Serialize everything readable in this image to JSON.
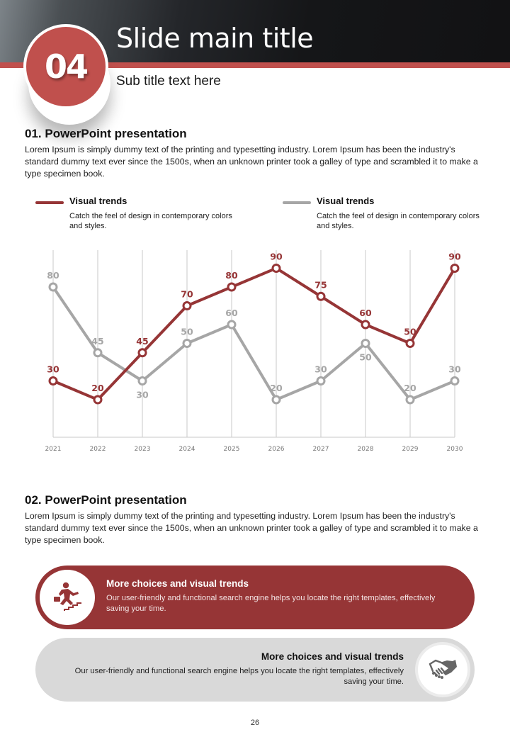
{
  "header": {
    "badge_number": "04",
    "title": "Slide main title",
    "subtitle": "Sub title text here"
  },
  "section1": {
    "title": "01. PowerPoint presentation",
    "body": "Lorem Ipsum is simply dummy text of the printing and typesetting industry. Lorem Ipsum has been the industry's standard dummy text ever since the 1500s, when an unknown printer took a galley of type and scrambled it to make a type specimen book."
  },
  "legend": [
    {
      "title": "Visual trends",
      "desc": "Catch the feel of design in contemporary colors and styles.",
      "color": "#963536"
    },
    {
      "title": "Visual trends",
      "desc": "Catch the feel of design in contemporary colors and styles.",
      "color": "#a6a6a6"
    }
  ],
  "chart_data": {
    "type": "line",
    "title": "",
    "xlabel": "",
    "ylabel": "",
    "categories": [
      "2021",
      "2022",
      "2023",
      "2024",
      "2025",
      "2026",
      "2027",
      "2028",
      "2029",
      "2030"
    ],
    "ylim": [
      0,
      100
    ],
    "grid": "vertical",
    "legend_position": "top",
    "series": [
      {
        "name": "Visual trends (red)",
        "color": "#963536",
        "values": [
          30,
          20,
          45,
          70,
          80,
          90,
          75,
          60,
          50,
          90
        ]
      },
      {
        "name": "Visual trends (gray)",
        "color": "#a6a6a6",
        "values": [
          80,
          45,
          30,
          50,
          60,
          20,
          30,
          50,
          20,
          30
        ]
      }
    ]
  },
  "section2": {
    "title": "02. PowerPoint presentation",
    "body": "Lorem Ipsum is simply dummy text of the printing and typesetting industry. Lorem Ipsum has been the industry's standard dummy text ever since the 1500s, when an unknown printer took a galley of type and scrambled it to make a type specimen book."
  },
  "cards": [
    {
      "icon": "businessman-climbing-stairs-icon",
      "title": "More choices and visual trends",
      "desc": "Our user-friendly and functional search engine helps you locate the right templates, effectively saving your time."
    },
    {
      "icon": "handshake-icon",
      "title": "More choices and visual trends",
      "desc": "Our user-friendly and functional search engine helps you locate the right templates, effectively saving your time."
    }
  ],
  "footer": {
    "page_number": "26"
  },
  "colors": {
    "accent_red": "#c0504d",
    "dark_red": "#963536",
    "gray": "#a6a6a6",
    "light_gray": "#d9d9d9"
  }
}
